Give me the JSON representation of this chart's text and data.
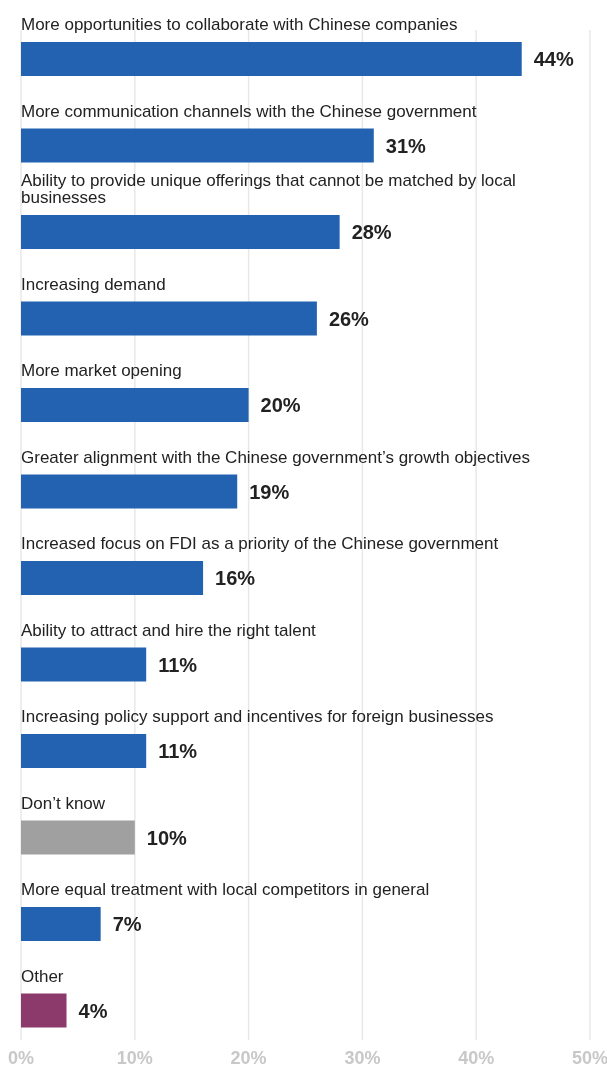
{
  "chart_data": {
    "type": "bar",
    "orientation": "horizontal",
    "categories": [
      "More opportunities to collaborate with Chinese companies",
      "More communication channels with the Chinese government",
      "Ability to provide unique offerings that cannot be matched by local businesses",
      "Increasing demand",
      "More market opening",
      "Greater alignment with the Chinese government’s growth objectives",
      "Increased focus on FDI as a priority of the Chinese government",
      "Ability to attract and hire the right talent",
      "Increasing policy support and incentives for foreign businesses",
      "Don’t know",
      "More equal treatment with local competitors in general",
      "Other"
    ],
    "values": [
      44,
      31,
      28,
      26,
      20,
      19,
      16,
      11,
      11,
      10,
      7,
      4
    ],
    "colors": [
      "#2262b0",
      "#2262b0",
      "#2262b0",
      "#2262b0",
      "#2262b0",
      "#2262b0",
      "#2262b0",
      "#2262b0",
      "#2262b0",
      "#a0a0a0",
      "#2262b0",
      "#8b3a6b"
    ],
    "value_labels": [
      "44%",
      "31%",
      "28%",
      "26%",
      "20%",
      "19%",
      "16%",
      "11%",
      "11%",
      "10%",
      "7%",
      "4%"
    ],
    "xlim": [
      0,
      50
    ],
    "xticks": [
      {
        "value": 0,
        "label": "0%"
      },
      {
        "value": 10,
        "label": "10%"
      },
      {
        "value": 20,
        "label": "20%"
      },
      {
        "value": 30,
        "label": "30%"
      },
      {
        "value": 40,
        "label": "40%"
      },
      {
        "value": 50,
        "label": "50%"
      }
    ],
    "grid": "x"
  }
}
